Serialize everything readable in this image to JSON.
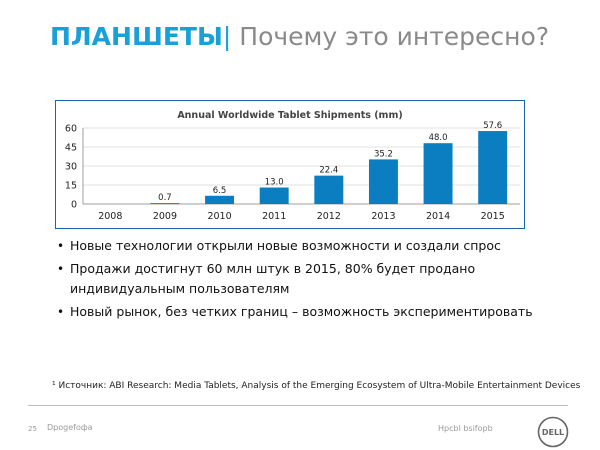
{
  "slide": {
    "title_bold": "ПЛАНШЕТЫ",
    "title_sep": "|",
    "title_rest": " Почему это интересно?",
    "page_number": "25",
    "footer_left": "Dpogefoфa",
    "footer_right": "Hpcbl bsifopb",
    "logo_text": "DELL"
  },
  "bullets": [
    "Новые технологии открыли новые возможности и создали спрос",
    "Продажи достигнут 60 млн штук в 2015, 80% будет продано индивидуальным пользователям",
    "Новый рынок, без четких границ – возможность экспериментировать"
  ],
  "footnote": "¹ Источник: ABI Research: Media Tablets, Analysis of the Emerging Ecosystem of Ultra-Mobile Entertainment Devices",
  "colors": {
    "accent": "#1aa0d8",
    "bar": "#0b7dc1",
    "frame": "#1a66a8"
  },
  "chart_data": {
    "type": "bar",
    "title": "Annual Worldwide Tablet Shipments (mm)",
    "categories": [
      "2008",
      "2009",
      "2010",
      "2011",
      "2012",
      "2013",
      "2014",
      "2015"
    ],
    "values": [
      0,
      0.7,
      6.5,
      13.0,
      22.4,
      35.2,
      48.0,
      57.6
    ],
    "value_labels": [
      "",
      "0.7",
      "6.5",
      "13.0",
      "22.4",
      "35.2",
      "48.0",
      "57.6"
    ],
    "yticks": [
      0,
      15,
      30,
      45,
      60
    ],
    "ylim": [
      0,
      60
    ],
    "xlabel": "",
    "ylabel": "",
    "grid": true,
    "legend": "none"
  }
}
